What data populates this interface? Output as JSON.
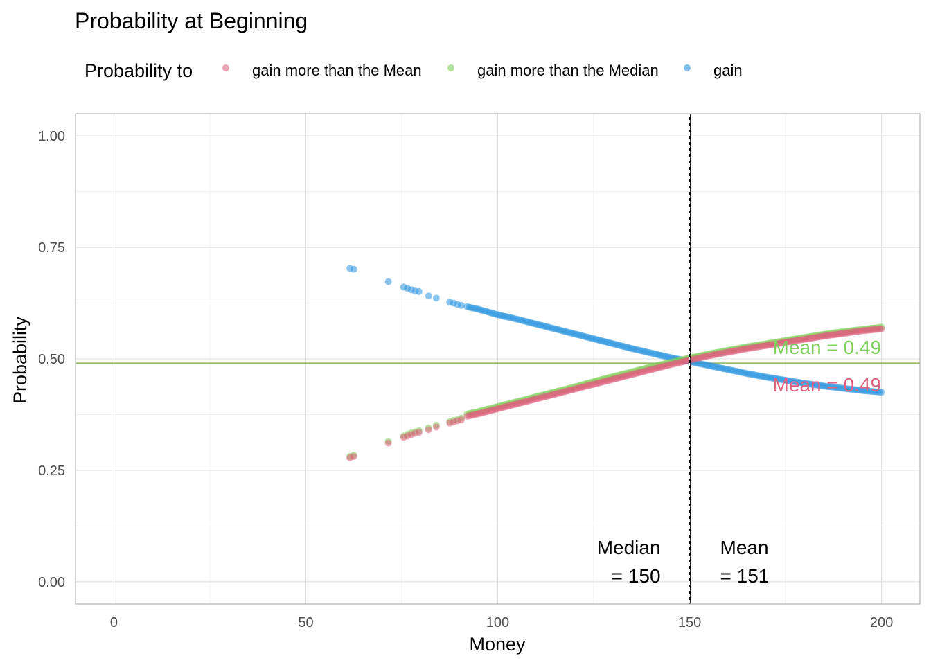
{
  "chart_data": {
    "type": "scatter",
    "title": "Probability at Beginning",
    "xlabel": "Money",
    "ylabel": "Probability",
    "xlim": [
      -10,
      210
    ],
    "ylim": [
      -0.05,
      1.05
    ],
    "x_ticks": [
      0,
      50,
      100,
      150,
      200
    ],
    "x_tick_labels": [
      "0",
      "50",
      "100",
      "150",
      "200"
    ],
    "y_ticks": [
      0.0,
      0.25,
      0.5,
      0.75,
      1.0
    ],
    "y_tick_labels": [
      "0.00",
      "0.25",
      "0.50",
      "0.75",
      "1.00"
    ],
    "grid": true,
    "legend": {
      "title": "Probability to",
      "position": "top",
      "entries": [
        {
          "label": "gain more than the Mean",
          "color": "#e0607e"
        },
        {
          "label": "gain more than the Median",
          "color": "#7fd05a"
        },
        {
          "label": "gain",
          "color": "#2b95e0"
        }
      ]
    },
    "series": [
      {
        "name": "gain",
        "color": "#2b95e0",
        "x": [
          61.5,
          62.5,
          71.5,
          75.5,
          76.5,
          77.5,
          78.5,
          79.5,
          82,
          84,
          87.5,
          88.5,
          89.5,
          90.5,
          92,
          95,
          100,
          105,
          110,
          115,
          120,
          125,
          130,
          135,
          140,
          145,
          150,
          155,
          160,
          165,
          170,
          175,
          180,
          185,
          190,
          195,
          200
        ],
        "y": [
          0.703,
          0.701,
          0.673,
          0.661,
          0.658,
          0.655,
          0.652,
          0.651,
          0.641,
          0.636,
          0.627,
          0.625,
          0.622,
          0.62,
          0.617,
          0.611,
          0.599,
          0.589,
          0.578,
          0.567,
          0.556,
          0.545,
          0.534,
          0.523,
          0.513,
          0.503,
          0.494,
          0.485,
          0.476,
          0.467,
          0.459,
          0.452,
          0.445,
          0.439,
          0.434,
          0.429,
          0.425
        ]
      },
      {
        "name": "gain more than the Median",
        "color": "#7fd05a",
        "x": [
          61.5,
          62.5,
          71.5,
          75.5,
          76.5,
          77.5,
          78.5,
          79.5,
          82,
          84,
          87.5,
          88.5,
          89.5,
          90.5,
          92,
          95,
          100,
          105,
          110,
          115,
          120,
          125,
          130,
          135,
          140,
          145,
          150,
          155,
          160,
          165,
          170,
          175,
          180,
          185,
          190,
          195,
          200
        ],
        "y": [
          0.281,
          0.284,
          0.315,
          0.327,
          0.331,
          0.334,
          0.336,
          0.339,
          0.345,
          0.351,
          0.359,
          0.362,
          0.364,
          0.367,
          0.376,
          0.382,
          0.393,
          0.404,
          0.415,
          0.426,
          0.437,
          0.449,
          0.46,
          0.471,
          0.482,
          0.492,
          0.502,
          0.511,
          0.519,
          0.527,
          0.534,
          0.541,
          0.548,
          0.555,
          0.561,
          0.566,
          0.571
        ]
      },
      {
        "name": "gain more than the Mean",
        "color": "#e0607e",
        "x": [
          61.5,
          62.5,
          71.5,
          75.5,
          76.5,
          77.5,
          78.5,
          79.5,
          82,
          84,
          87.5,
          88.5,
          89.5,
          90.5,
          92,
          95,
          100,
          105,
          110,
          115,
          120,
          125,
          130,
          135,
          140,
          145,
          150,
          155,
          160,
          165,
          170,
          175,
          180,
          185,
          190,
          195,
          200
        ],
        "y": [
          0.278,
          0.281,
          0.311,
          0.324,
          0.327,
          0.33,
          0.333,
          0.335,
          0.341,
          0.347,
          0.356,
          0.358,
          0.361,
          0.363,
          0.371,
          0.377,
          0.388,
          0.399,
          0.41,
          0.421,
          0.432,
          0.443,
          0.454,
          0.465,
          0.476,
          0.487,
          0.497,
          0.507,
          0.515,
          0.523,
          0.53,
          0.537,
          0.544,
          0.551,
          0.557,
          0.563,
          0.567
        ]
      }
    ],
    "reference_lines": [
      {
        "orientation": "horizontal",
        "y": 0.49,
        "color": "#e0607e"
      },
      {
        "orientation": "horizontal",
        "y": 0.49,
        "color": "#7fd05a"
      },
      {
        "orientation": "vertical",
        "x": 150,
        "color": "#000000",
        "style": "dashed"
      },
      {
        "orientation": "vertical",
        "x": 150,
        "color": "#ffffff",
        "style": "dashed"
      }
    ],
    "annotations": [
      {
        "line1": "Median",
        "line2": "= 150",
        "x": 150,
        "color": "#000000",
        "side": "left"
      },
      {
        "line1": "Mean",
        "line2": "= 151",
        "x": 151,
        "color": "#000000",
        "side": "right"
      },
      {
        "text": "Mean = 0.49",
        "color": "#7fd05a",
        "series": "gain more than the Median"
      },
      {
        "text": "Mean = 0.49",
        "color": "#e0607e",
        "series": "gain more than the Mean"
      }
    ]
  }
}
